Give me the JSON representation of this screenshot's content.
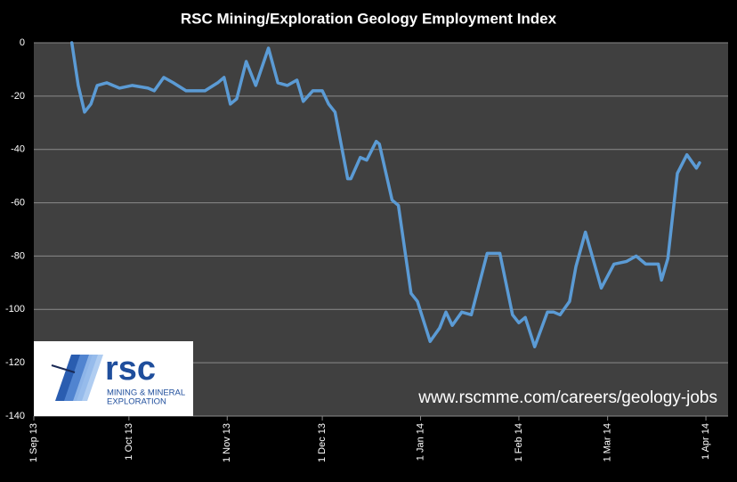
{
  "chart_data": {
    "type": "line",
    "title": "RSC Mining/Exploration Geology Employment Index",
    "watermark": "www.rscmme.com/careers/geology-jobs",
    "logo": {
      "name": "rsc",
      "lines": [
        "MINING & MINERAL",
        "EXPLORATION"
      ]
    },
    "color": "#5b9bd5",
    "grid": true,
    "x": [
      "2013-09-13",
      "2013-09-15",
      "2013-09-17",
      "2013-09-19",
      "2013-09-21",
      "2013-09-24",
      "2013-09-28",
      "2013-10-02",
      "2013-10-07",
      "2013-10-09",
      "2013-10-12",
      "2013-10-15",
      "2013-10-19",
      "2013-10-25",
      "2013-10-29",
      "2013-10-31",
      "2013-11-02",
      "2013-11-04",
      "2013-11-07",
      "2013-11-10",
      "2013-11-14",
      "2013-11-17",
      "2013-11-20",
      "2013-11-23",
      "2013-11-25",
      "2013-11-28",
      "2013-12-01",
      "2013-12-03",
      "2013-12-05",
      "2013-12-09",
      "2013-12-10",
      "2013-12-13",
      "2013-12-15",
      "2013-12-18",
      "2013-12-19",
      "2013-12-23",
      "2013-12-25",
      "2013-12-29",
      "2013-12-31",
      "2014-01-04",
      "2014-01-07",
      "2014-01-09",
      "2014-01-11",
      "2014-01-14",
      "2014-01-17",
      "2014-01-22",
      "2014-01-26",
      "2014-01-30",
      "2014-02-01",
      "2014-02-03",
      "2014-02-06",
      "2014-02-10",
      "2014-02-12",
      "2014-02-14",
      "2014-02-17",
      "2014-02-19",
      "2014-02-22",
      "2014-02-27",
      "2014-03-03",
      "2014-03-07",
      "2014-03-10",
      "2014-03-13",
      "2014-03-17",
      "2014-03-18",
      "2014-03-20",
      "2014-03-23",
      "2014-03-26",
      "2014-03-29",
      "2014-03-30"
    ],
    "values": [
      0,
      -16,
      -26,
      -23,
      -16,
      -15,
      -17,
      -16,
      -17,
      -18,
      -13,
      -15,
      -18,
      -18,
      -15,
      -13,
      -23,
      -21,
      -7,
      -16,
      -2,
      -15,
      -16,
      -14,
      -22,
      -18,
      -18,
      -23,
      -26,
      -51,
      -51,
      -43,
      -44,
      -37,
      -38,
      -59,
      -61,
      -94,
      -97,
      -112,
      -107,
      -101,
      -106,
      -101,
      -102,
      -79,
      -79,
      -102,
      -105,
      -103,
      -114,
      -101,
      -101,
      -102,
      -97,
      -84,
      -71,
      -92,
      -83,
      -82,
      -80,
      -83,
      -83,
      -89,
      -81,
      -49,
      -42,
      -47,
      -45
    ],
    "xlim": [
      "2013-09-01",
      "2014-04-08"
    ],
    "xticks": [
      {
        "value": "2013-09-01",
        "label": "1 Sep 13"
      },
      {
        "value": "2013-10-01",
        "label": "1 Oct 13"
      },
      {
        "value": "2013-11-01",
        "label": "1 Nov 13"
      },
      {
        "value": "2013-12-01",
        "label": "1 Dec 13"
      },
      {
        "value": "2014-01-01",
        "label": "1 Jan 14"
      },
      {
        "value": "2014-02-01",
        "label": "1 Feb 14"
      },
      {
        "value": "2014-03-01",
        "label": "1 Mar 14"
      },
      {
        "value": "2014-04-01",
        "label": "1 Apr 14"
      }
    ],
    "ylim": [
      -140,
      0
    ],
    "yticks": [
      0,
      -20,
      -40,
      -60,
      -80,
      -100,
      -120,
      -140
    ]
  }
}
